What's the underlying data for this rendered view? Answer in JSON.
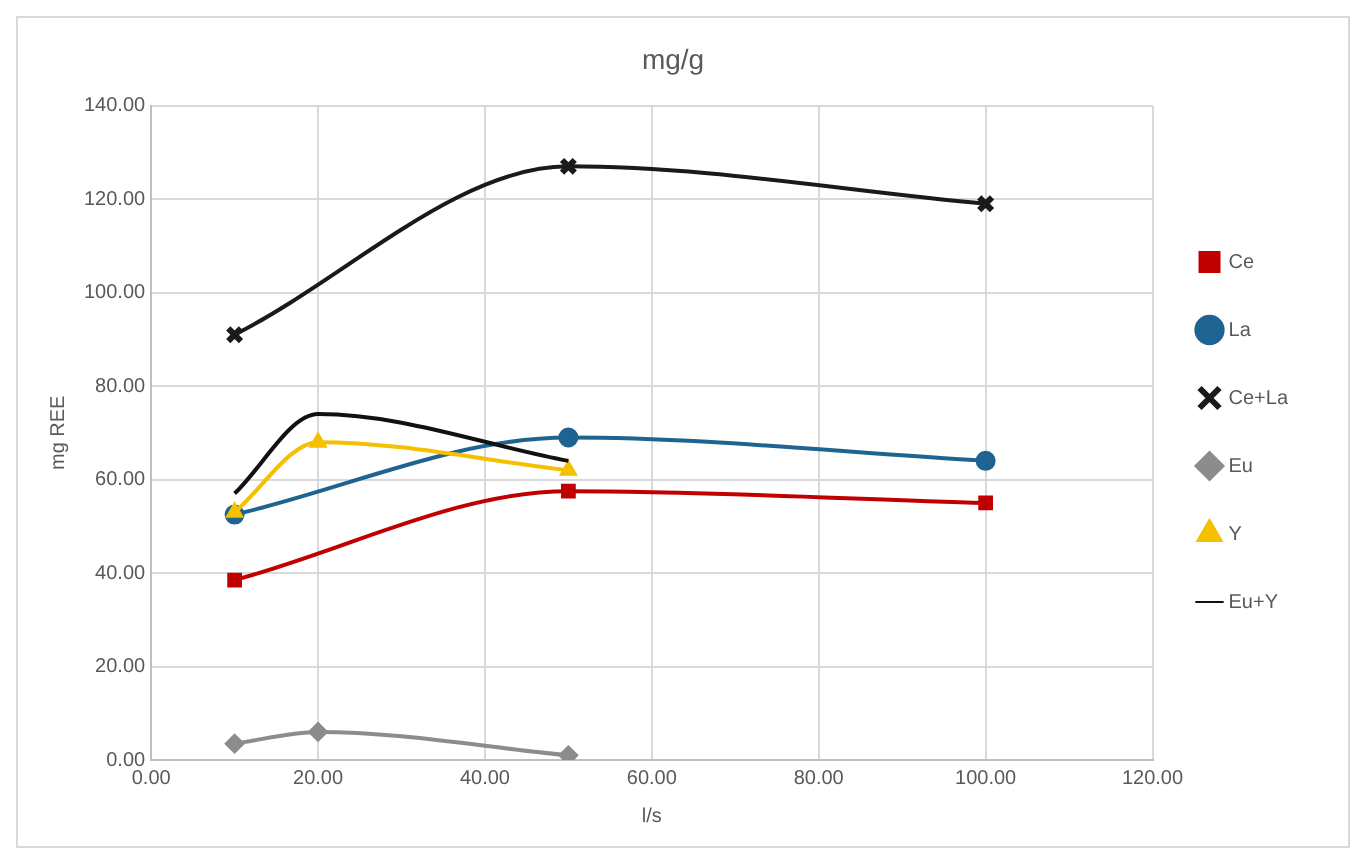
{
  "chart_data": {
    "type": "line",
    "title": "mg/g",
    "xlabel": "l/s",
    "ylabel": "mg REE",
    "xlim": [
      0,
      120
    ],
    "xticks": [
      {
        "value": 0,
        "label": "0.00"
      },
      {
        "value": 20,
        "label": "20.00"
      },
      {
        "value": 40,
        "label": "40.00"
      },
      {
        "value": 60,
        "label": "60.00"
      },
      {
        "value": 80,
        "label": "80.00"
      },
      {
        "value": 100,
        "label": "100.00"
      },
      {
        "value": 120,
        "label": "120.00"
      }
    ],
    "ylim": [
      0,
      140
    ],
    "yticks": [
      {
        "value": 0,
        "label": "0.00"
      },
      {
        "value": 20,
        "label": "20.00"
      },
      {
        "value": 40,
        "label": "40.00"
      },
      {
        "value": 60,
        "label": "60.00"
      },
      {
        "value": 80,
        "label": "80.00"
      },
      {
        "value": 100,
        "label": "100.00"
      },
      {
        "value": 120,
        "label": "120.00"
      },
      {
        "value": 140,
        "label": "140.00"
      }
    ],
    "grid": true,
    "legend": "right",
    "series": [
      {
        "name": "Ce",
        "color": "#c00000",
        "marker": "square",
        "x": [
          10,
          50,
          100
        ],
        "values": [
          38.5,
          57.5,
          55
        ]
      },
      {
        "name": "La",
        "color": "#1f6391",
        "marker": "circle",
        "x": [
          10,
          50,
          100
        ],
        "values": [
          52.5,
          69,
          64
        ]
      },
      {
        "name": "Ce+La",
        "color": "#1a1a1a",
        "marker": "cross",
        "x": [
          10,
          50,
          100
        ],
        "values": [
          91,
          127,
          119
        ]
      },
      {
        "name": "Eu",
        "color": "#8c8c8c",
        "marker": "diamond",
        "x": [
          10,
          20,
          50
        ],
        "values": [
          3.5,
          6,
          1
        ]
      },
      {
        "name": "Y",
        "color": "#f5c000",
        "marker": "triangle",
        "x": [
          10,
          20,
          50
        ],
        "values": [
          53,
          68,
          62
        ]
      },
      {
        "name": "Eu+Y",
        "color": "#111111",
        "marker": "none",
        "x": [
          10,
          20,
          50
        ],
        "values": [
          57,
          74,
          64
        ]
      }
    ]
  }
}
